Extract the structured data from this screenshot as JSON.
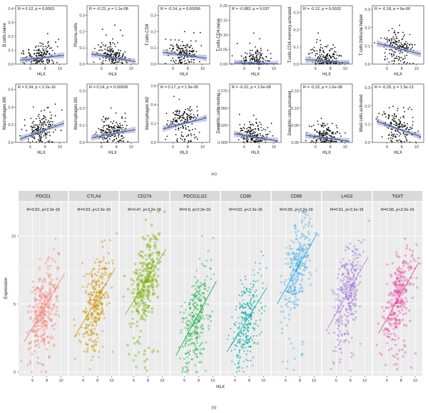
{
  "chart_data": [
    {
      "type": "scatter",
      "panel": "e",
      "caption": "(e)",
      "xlabel": "HLX",
      "subplots": [
        {
          "ylabel": "B.cells.naive",
          "stat": "R = 0.12, p = 0.0053",
          "yticks": [
            "0.0",
            "0.1",
            "0.2",
            "0.3",
            "0.4"
          ],
          "ylim": [
            0,
            0.42
          ],
          "trend": [
            0.03,
            0.06
          ],
          "seed": 11
        },
        {
          "ylabel": "Plasma.cells",
          "stat": "R = -0.22, p = 1.1e-08",
          "yticks": [
            "0.0",
            "0.1",
            "0.2",
            "0.3"
          ],
          "ylim": [
            0,
            0.36
          ],
          "trend": [
            0.06,
            0.02
          ],
          "seed": 12
        },
        {
          "ylabel": "T.cells.CD8",
          "stat": "R = -0.14, p = 0.00056",
          "yticks": [
            "0.0",
            "0.1",
            "0.2",
            "0.3"
          ],
          "ylim": [
            0,
            0.36
          ],
          "trend": [
            0.07,
            0.04
          ],
          "seed": 13
        },
        {
          "ylabel": "T.cells.CD4.naive",
          "stat": "R = -0.083, p = 0.037",
          "yticks": [
            "0.00",
            "0.05",
            "0.10",
            "0.15",
            "0.20"
          ],
          "ylim": [
            0,
            0.2
          ],
          "trend": [
            0.004,
            0.001
          ],
          "seed": 14
        },
        {
          "ylabel": "T.cells.CD4.memory.activated",
          "stat": "R = -0.12, p = 0.0033",
          "yticks": [
            "0.0",
            "0.1",
            "0.2",
            "0.3"
          ],
          "ylim": [
            0,
            0.34
          ],
          "trend": [
            0.025,
            0.008
          ],
          "seed": 15
        },
        {
          "ylabel": "T.cells.follicular.helper",
          "stat": "R = -0.18, p = 6e-06",
          "yticks": [
            "0.0",
            "0.1",
            "0.2",
            "0.3"
          ],
          "ylim": [
            0,
            0.32
          ],
          "trend": [
            0.11,
            0.06
          ],
          "seed": 16
        },
        {
          "ylabel": "Macrophages.M0",
          "stat": "R = 0.34, p < 2.2e-16",
          "yticks": [
            "0.0",
            "0.2",
            "0.4",
            "0.6"
          ],
          "ylim": [
            0,
            0.66
          ],
          "trend": [
            0.05,
            0.2
          ],
          "seed": 17
        },
        {
          "ylabel": "Macrophages.M1",
          "stat": "R = 0.14, p = 0.00028",
          "yticks": [
            "0.0",
            "0.1",
            "0.2",
            "0.3"
          ],
          "ylim": [
            0,
            0.34
          ],
          "trend": [
            0.03,
            0.07
          ],
          "seed": 18
        },
        {
          "ylabel": "Macrophages.M2",
          "stat": "R = 0.17, p = 1.5e-05",
          "yticks": [
            "0.0",
            "0.2",
            "0.4",
            "0.6"
          ],
          "ylim": [
            0,
            0.62
          ],
          "trend": [
            0.15,
            0.25
          ],
          "seed": 19
        },
        {
          "ylabel": "Dendritic.cells.resting",
          "stat": "R = -0.22, p = 1.6e-08",
          "yticks": [
            "0.000",
            "0.025",
            "0.050",
            "0.075"
          ],
          "ylim": [
            0,
            0.085
          ],
          "trend": [
            0.012,
            0.003
          ],
          "seed": 20
        },
        {
          "ylabel": "Dendritic.cells.activated",
          "stat": "R = -0.22, p = 1.6e-08",
          "yticks": [
            "0.00",
            "0.05",
            "0.10",
            "0.15"
          ],
          "ylim": [
            0,
            0.17
          ],
          "trend": [
            0.02,
            0.005
          ],
          "seed": 21
        },
        {
          "ylabel": "Mast.cells.activated",
          "stat": "R = -0.29, p = 1.3e-13",
          "yticks": [
            "0.0",
            "0.1",
            "0.2",
            "0.3"
          ],
          "ylim": [
            0,
            0.32
          ],
          "trend": [
            0.11,
            0.04
          ],
          "seed": 22
        }
      ],
      "xticks": [
        "6",
        "8",
        "10"
      ],
      "xlim": [
        4,
        11
      ]
    },
    {
      "type": "scatter",
      "panel": "f",
      "caption": "(f)",
      "xlabel": "HLX",
      "ylabel": "Expression",
      "yticks": [
        "0",
        "5",
        "10"
      ],
      "ylim": [
        -0.3,
        12.6
      ],
      "xticks": [
        "6",
        "8",
        "10"
      ],
      "xlim": [
        4,
        11
      ],
      "facets": [
        {
          "name": "PDCD1",
          "stat": "R=0.52, p<2.2e-16",
          "color": "#F8766D",
          "marker": "circle",
          "base": [
            2.4,
            6.8
          ],
          "seed": 31
        },
        {
          "name": "CTLA4",
          "stat": "R=0.53, p<2.2e-16",
          "color": "#CD9600",
          "marker": "triangle",
          "base": [
            2.8,
            7.2
          ],
          "seed": 32
        },
        {
          "name": "CD274",
          "stat": "R=0.47, p<2.2e-16",
          "color": "#7CAE00",
          "marker": "square",
          "base": [
            4.4,
            8.6
          ],
          "seed": 33
        },
        {
          "name": "PDCD1LG2",
          "stat": "R=0.6, p<2.2e-16",
          "color": "#00A932",
          "marker": "cross",
          "base": [
            1.4,
            6.2
          ],
          "seed": 34
        },
        {
          "name": "CD80",
          "stat": "R=0.53, p<2.2e-16",
          "color": "#00A9A4",
          "marker": "plus",
          "base": [
            1.6,
            5.8
          ],
          "seed": 35
        },
        {
          "name": "CD86",
          "stat": "R=0.65, p<2.2e-16",
          "color": "#1A9FE6",
          "marker": "diamond",
          "base": [
            5.2,
            9.8
          ],
          "seed": 36
        },
        {
          "name": "LAG3",
          "stat": "R=0.51, p<2.2e-16",
          "color": "#A37CD8",
          "marker": "tridown",
          "base": [
            3.4,
            8.0
          ],
          "seed": 37
        },
        {
          "name": "TIGIT",
          "stat": "R=0.56, p<2.2e-16",
          "color": "#E7409A",
          "marker": "circle",
          "base": [
            3.0,
            7.6
          ],
          "seed": 38
        }
      ]
    }
  ]
}
